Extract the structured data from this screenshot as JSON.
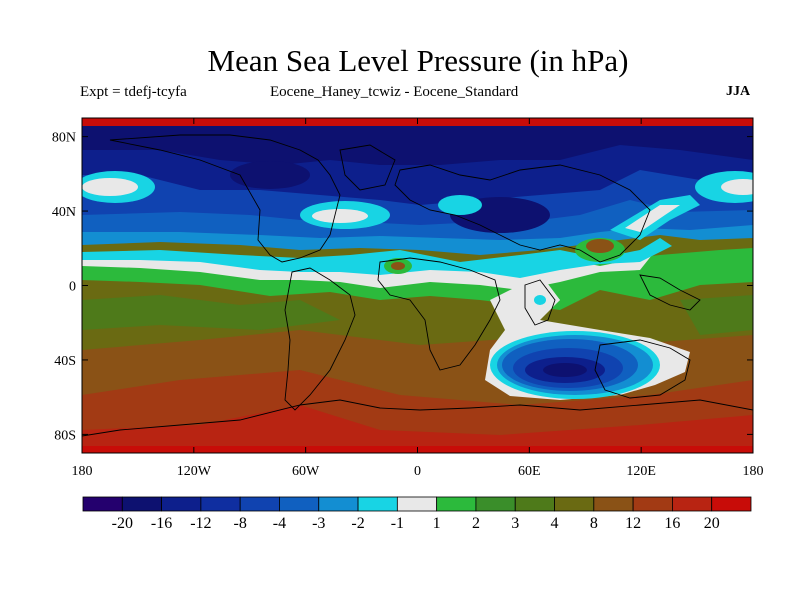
{
  "title": "Mean Sea Level Pressure (in hPa)",
  "subtitle": {
    "left": "Expt = tdefj-tcyfa",
    "center": "Eocene_Haney_tcwiz - Eocene_Standard",
    "right": "JJA"
  },
  "axes": {
    "lat_ticks": [
      {
        "value": 80,
        "label": "80N"
      },
      {
        "value": 40,
        "label": "40N"
      },
      {
        "value": 0,
        "label": "0"
      },
      {
        "value": -40,
        "label": "40S"
      },
      {
        "value": -80,
        "label": "80S"
      }
    ],
    "lon_ticks": [
      {
        "value": -180,
        "label": "180"
      },
      {
        "value": -120,
        "label": "120W"
      },
      {
        "value": -60,
        "label": "60W"
      },
      {
        "value": 0,
        "label": "0"
      },
      {
        "value": 60,
        "label": "60E"
      },
      {
        "value": 120,
        "label": "120E"
      },
      {
        "value": 180,
        "label": "180"
      }
    ],
    "lon_range": [
      -180,
      180
    ],
    "lat_range": [
      -90,
      90
    ]
  },
  "colorbar": {
    "colors": [
      "#24006e",
      "#0d1170",
      "#0d1f8c",
      "#0f2ea0",
      "#1043b0",
      "#1060c0",
      "#138ed2",
      "#18d4e4",
      "#e8e8e8",
      "#2cba3c",
      "#3a8e2a",
      "#4e7a1a",
      "#6a6a12",
      "#8a5216",
      "#a23a14",
      "#b82412",
      "#c80c08"
    ],
    "labels": [
      "-20",
      "-16",
      "-12",
      "-8",
      "-4",
      "-3",
      "-2",
      "-1",
      "1",
      "2",
      "3",
      "4",
      "8",
      "12",
      "16",
      "20"
    ]
  },
  "field_colors": {
    "red_band": "#c80c08",
    "deep_blue": "#0d1170",
    "navy": "#0d1f8c",
    "blue": "#1043b0",
    "mid_blue": "#1060c0",
    "light_blue": "#138ed2",
    "cyan": "#18d4e4",
    "white": "#e8e8e8",
    "green": "#2cba3c",
    "olive_green": "#4e7a1a",
    "olive": "#6a6a12",
    "brown": "#8a5216",
    "red_brown": "#a23a14",
    "dark_red": "#b82412"
  },
  "icons": {
    "coastlines": "coastline-outline"
  }
}
